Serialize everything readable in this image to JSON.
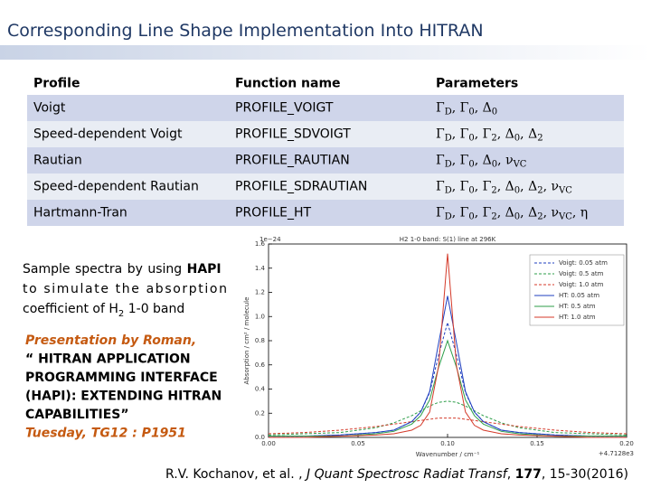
{
  "header": {
    "title": "Corresponding Line Shape Implementation Into HITRAN"
  },
  "table": {
    "columns": [
      "Profile",
      "Function name",
      "Parameters"
    ],
    "rows": [
      {
        "profile": "Voigt",
        "function": "PROFILE_VOIGT",
        "parameters": [
          [
            "Γ",
            "D"
          ],
          [
            "Γ",
            "0"
          ],
          [
            "Δ",
            "0"
          ]
        ]
      },
      {
        "profile": "Speed-dependent Voigt",
        "function": "PROFILE_SDVOIGT",
        "parameters": [
          [
            "Γ",
            "D"
          ],
          [
            "Γ",
            "0"
          ],
          [
            "Γ",
            "2"
          ],
          [
            "Δ",
            "0"
          ],
          [
            "Δ",
            "2"
          ]
        ]
      },
      {
        "profile": "Rautian",
        "function": "PROFILE_RAUTIAN",
        "parameters": [
          [
            "Γ",
            "D"
          ],
          [
            "Γ",
            "0"
          ],
          [
            "Δ",
            "0"
          ],
          [
            "ν",
            "VC"
          ]
        ]
      },
      {
        "profile": "Speed-dependent Rautian",
        "function": "PROFILE_SDRAUTIAN",
        "parameters": [
          [
            "Γ",
            "D"
          ],
          [
            "Γ",
            "0"
          ],
          [
            "Γ",
            "2"
          ],
          [
            "Δ",
            "0"
          ],
          [
            "Δ",
            "2"
          ],
          [
            "ν",
            "VC"
          ]
        ]
      },
      {
        "profile": "Hartmann-Tran",
        "function": "PROFILE_HT",
        "parameters": [
          [
            "Γ",
            "D"
          ],
          [
            "Γ",
            "0"
          ],
          [
            "Γ",
            "2"
          ],
          [
            "Δ",
            "0"
          ],
          [
            "Δ",
            "2"
          ],
          [
            "ν",
            "VC"
          ],
          [
            "η"
          ]
        ]
      }
    ]
  },
  "sample_text": {
    "lines": [
      [
        {
          "text": "Sample spectra by using "
        },
        {
          "text": "HAPI",
          "bold": true
        }
      ],
      [
        {
          "text": "to simulate the absorption"
        }
      ],
      [
        {
          "text": "coefficient of H"
        },
        {
          "text": "2",
          "sub": true
        },
        {
          "text": " 1-0 band"
        }
      ]
    ]
  },
  "presentation": {
    "lines": [
      {
        "text": "Presentation by Roman,",
        "style": "accent"
      },
      {
        "text": "“ HITRAN APPLICATION",
        "style": "plain"
      },
      {
        "text": "PROGRAMMING INTERFACE",
        "style": "plain"
      },
      {
        "text": "(HAPI): EXTENDING HITRAN",
        "style": "plain"
      },
      {
        "text": "CAPABILITIES”",
        "style": "plain"
      },
      {
        "text": "Tuesday,  TG12  : P1951",
        "style": "accent"
      }
    ]
  },
  "citation": [
    {
      "text": "R.V. Kochanov, et al. , "
    },
    {
      "text": "J Quant Spectrosc Radiat Transf",
      "italic": true
    },
    {
      "text": ", "
    },
    {
      "text": "177",
      "bold": true
    },
    {
      "text": ", 15-30(2016)"
    }
  ],
  "chart_data": {
    "type": "line",
    "title": "H2 1-0 band: S(1) line at 296K",
    "x_label": "Wavenumber / cm⁻¹",
    "y_label": "Absorption / cm² / molecule",
    "y_multiplier": "1e−24",
    "x_offset": "+4.7128e3",
    "x": [
      0,
      0.02,
      0.04,
      0.06,
      0.07,
      0.08,
      0.085,
      0.09,
      0.095,
      0.1,
      0.105,
      0.11,
      0.115,
      0.12,
      0.13,
      0.14,
      0.16,
      0.18,
      0.2
    ],
    "xlim": [
      0,
      0.2
    ],
    "ylim": [
      0,
      1.6
    ],
    "xticks": [
      {
        "value": 0,
        "label": "0.00"
      },
      {
        "value": 0.05,
        "label": "0.05"
      },
      {
        "value": 0.1,
        "label": "0.10"
      },
      {
        "value": 0.15,
        "label": "0.15"
      },
      {
        "value": 0.2,
        "label": "0.20"
      }
    ],
    "yticks": [
      {
        "value": 0,
        "label": "0.0"
      },
      {
        "value": 0.2,
        "label": "0.2"
      },
      {
        "value": 0.4,
        "label": "0.4"
      },
      {
        "value": 0.6,
        "label": "0.6"
      },
      {
        "value": 0.8,
        "label": "0.8"
      },
      {
        "value": 1.0,
        "label": "1.0"
      },
      {
        "value": 1.2,
        "label": "1.2"
      },
      {
        "value": 1.4,
        "label": "1.4"
      },
      {
        "value": 1.6,
        "label": "1.6"
      }
    ],
    "legend": "upper right",
    "series": [
      {
        "name": "Voigt: 0.05 atm",
        "color": "#1f3fbf",
        "dashed": true,
        "values": [
          0.01,
          0.01,
          0.02,
          0.04,
          0.06,
          0.13,
          0.21,
          0.37,
          0.68,
          0.95,
          0.68,
          0.37,
          0.21,
          0.13,
          0.06,
          0.04,
          0.02,
          0.01,
          0.01
        ]
      },
      {
        "name": "Voigt: 0.5 atm",
        "color": "#2e9e4a",
        "dashed": true,
        "values": [
          0.02,
          0.03,
          0.04,
          0.08,
          0.12,
          0.18,
          0.22,
          0.26,
          0.29,
          0.3,
          0.29,
          0.26,
          0.22,
          0.18,
          0.12,
          0.08,
          0.04,
          0.03,
          0.02
        ]
      },
      {
        "name": "Voigt: 1.0 atm",
        "color": "#d43a2a",
        "dashed": true,
        "values": [
          0.03,
          0.04,
          0.06,
          0.09,
          0.11,
          0.13,
          0.14,
          0.15,
          0.16,
          0.16,
          0.16,
          0.15,
          0.14,
          0.13,
          0.11,
          0.09,
          0.06,
          0.04,
          0.03
        ]
      },
      {
        "name": "HT: 0.05 atm",
        "color": "#1f3fbf",
        "dashed": false,
        "values": [
          0.01,
          0.01,
          0.02,
          0.04,
          0.06,
          0.13,
          0.21,
          0.38,
          0.78,
          1.17,
          0.78,
          0.38,
          0.21,
          0.13,
          0.06,
          0.04,
          0.02,
          0.01,
          0.01
        ]
      },
      {
        "name": "HT: 0.5 atm",
        "color": "#2e9e4a",
        "dashed": false,
        "values": [
          0.01,
          0.01,
          0.01,
          0.03,
          0.05,
          0.11,
          0.18,
          0.31,
          0.58,
          0.8,
          0.58,
          0.31,
          0.18,
          0.11,
          0.05,
          0.03,
          0.01,
          0.01,
          0.01
        ]
      },
      {
        "name": "HT: 1.0 atm",
        "color": "#d43a2a",
        "dashed": false,
        "values": [
          0.0,
          0.0,
          0.01,
          0.02,
          0.03,
          0.06,
          0.1,
          0.21,
          0.59,
          1.52,
          0.59,
          0.21,
          0.1,
          0.06,
          0.03,
          0.02,
          0.01,
          0.0,
          0.0
        ]
      }
    ]
  }
}
